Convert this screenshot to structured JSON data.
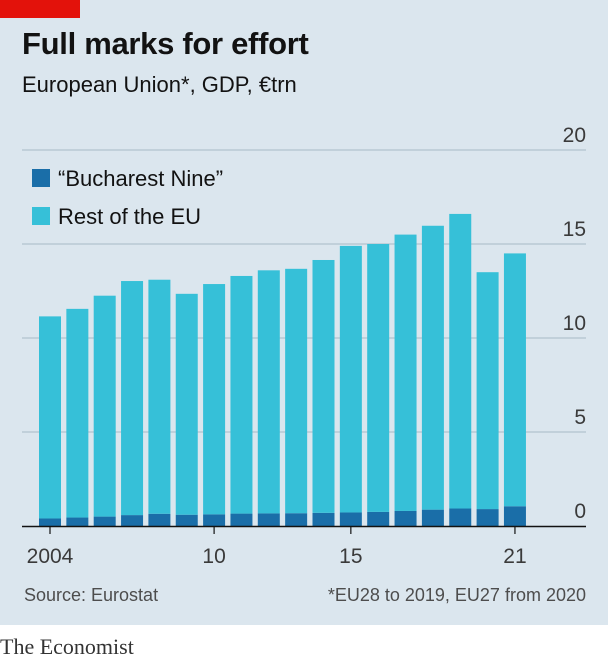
{
  "header": {
    "title": "Full marks for effort",
    "subtitle": "European Union*, GDP, €trn"
  },
  "footer": {
    "source": "Source: Eurostat",
    "footnote": "*EU28 to 2019, EU27 from 2020",
    "brand": "The Economist"
  },
  "colors": {
    "accent": "#e3120b",
    "bucharest_nine": "#1a6ea8",
    "rest_of_eu": "#36c0d8",
    "background": "#dbe6ee",
    "grid": "#a7bac6"
  },
  "chart_data": {
    "type": "bar",
    "stacked": true,
    "categories": [
      "2004",
      "2005",
      "2006",
      "2007",
      "2008",
      "2009",
      "2010",
      "2011",
      "2012",
      "2013",
      "2014",
      "2015",
      "2016",
      "2017",
      "2018",
      "2019",
      "2020",
      "2021"
    ],
    "x_tick_labels": [
      {
        "category": "2004",
        "label": "2004"
      },
      {
        "category": "2010",
        "label": "10"
      },
      {
        "category": "2015",
        "label": "15"
      },
      {
        "category": "2021",
        "label": "21"
      }
    ],
    "series": [
      {
        "name": "“Bucharest Nine”",
        "color": "#1a6ea8",
        "values": [
          0.4,
          0.45,
          0.5,
          0.58,
          0.65,
          0.6,
          0.62,
          0.66,
          0.67,
          0.68,
          0.7,
          0.72,
          0.75,
          0.8,
          0.87,
          0.93,
          0.9,
          1.05
        ]
      },
      {
        "name": "Rest of the EU",
        "color": "#36c0d8",
        "values": [
          10.75,
          11.1,
          11.75,
          12.45,
          12.45,
          11.75,
          12.25,
          12.64,
          12.93,
          13.0,
          13.45,
          14.18,
          14.25,
          14.7,
          15.1,
          15.67,
          12.6,
          13.45
        ]
      }
    ],
    "ylim": [
      0,
      20
    ],
    "yticks": [
      0,
      5,
      10,
      15,
      20
    ],
    "grid": true,
    "legend_position": "top-left",
    "xlabel": "",
    "ylabel": ""
  }
}
